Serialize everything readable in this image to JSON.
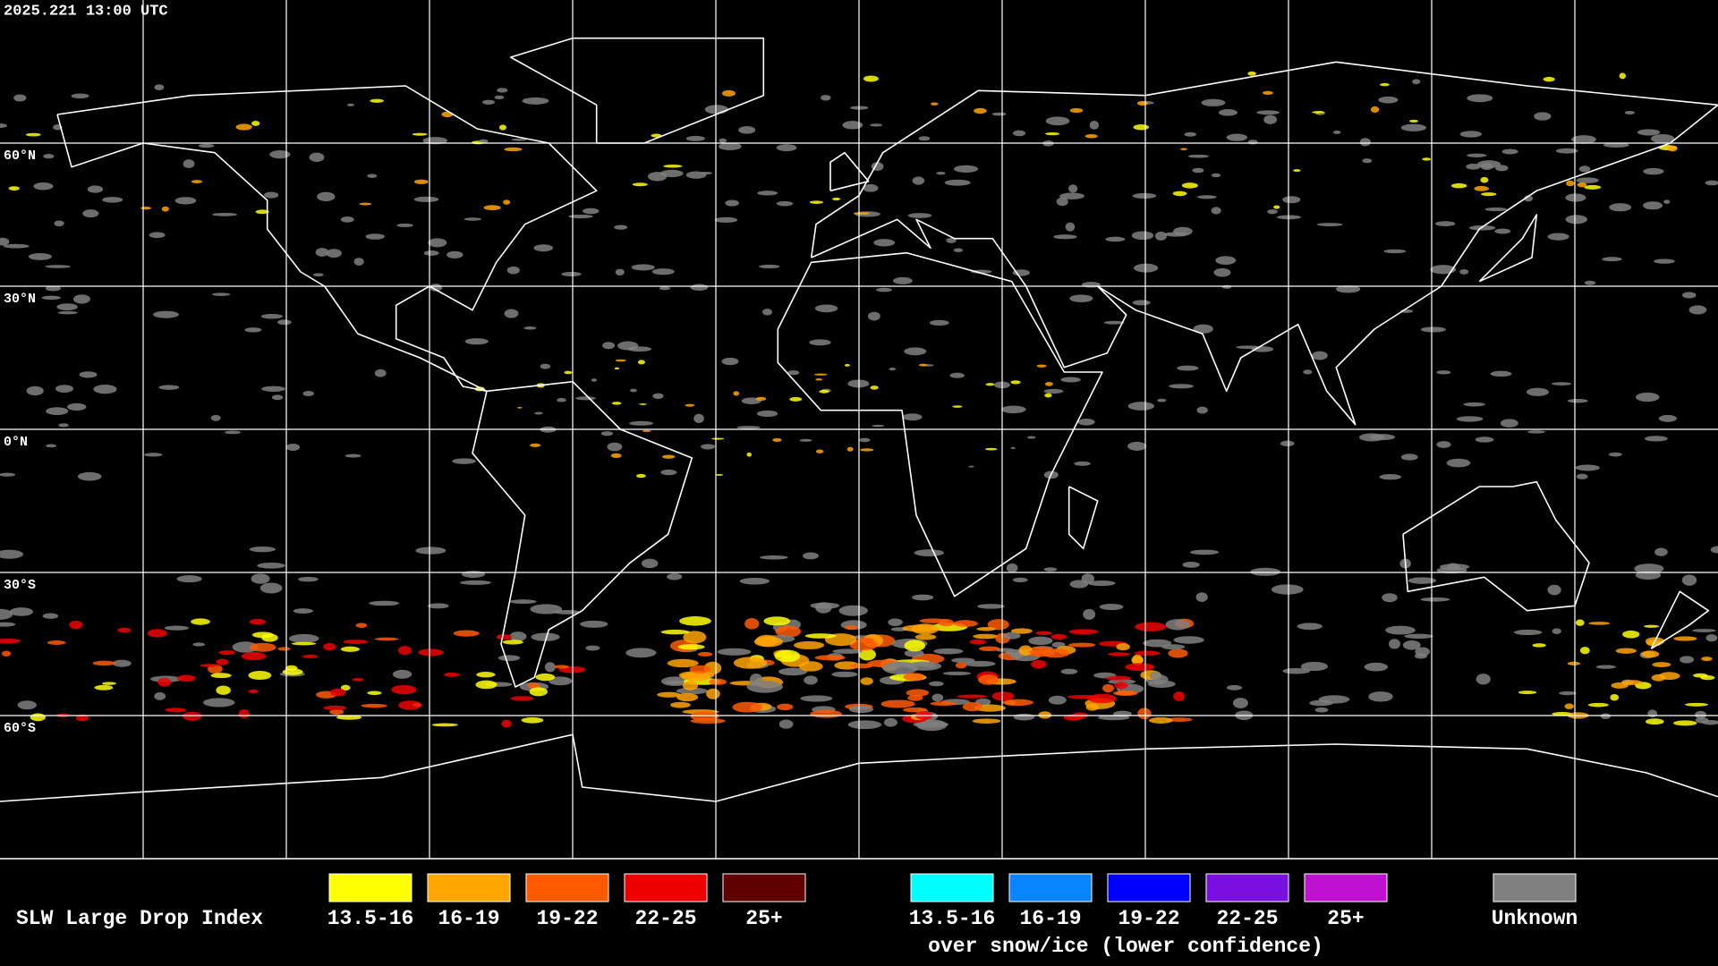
{
  "header": {
    "timestamp": "2025.221 13:00 UTC"
  },
  "map": {
    "latitude_labels": [
      "60°N",
      "30°N",
      "0°N",
      "30°S",
      "60°S"
    ]
  },
  "legend": {
    "title": "SLW Large Drop Index",
    "liquid": [
      {
        "label": "13.5-16",
        "color": "#ffff00"
      },
      {
        "label": "16-19",
        "color": "#ffa500"
      },
      {
        "label": "19-22",
        "color": "#ff5a00"
      },
      {
        "label": "22-25",
        "color": "#ee0000"
      },
      {
        "label": "25+",
        "color": "#600000"
      }
    ],
    "ice": [
      {
        "label": "13.5-16",
        "color": "#00ffff"
      },
      {
        "label": "16-19",
        "color": "#0a84ff"
      },
      {
        "label": "19-22",
        "color": "#0000ff"
      },
      {
        "label": "22-25",
        "color": "#7a10e0"
      },
      {
        "label": "25+",
        "color": "#c010d0"
      }
    ],
    "ice_caption": "over snow/ice (lower confidence)",
    "unknown": {
      "label": "Unknown",
      "color": "#808080"
    }
  }
}
